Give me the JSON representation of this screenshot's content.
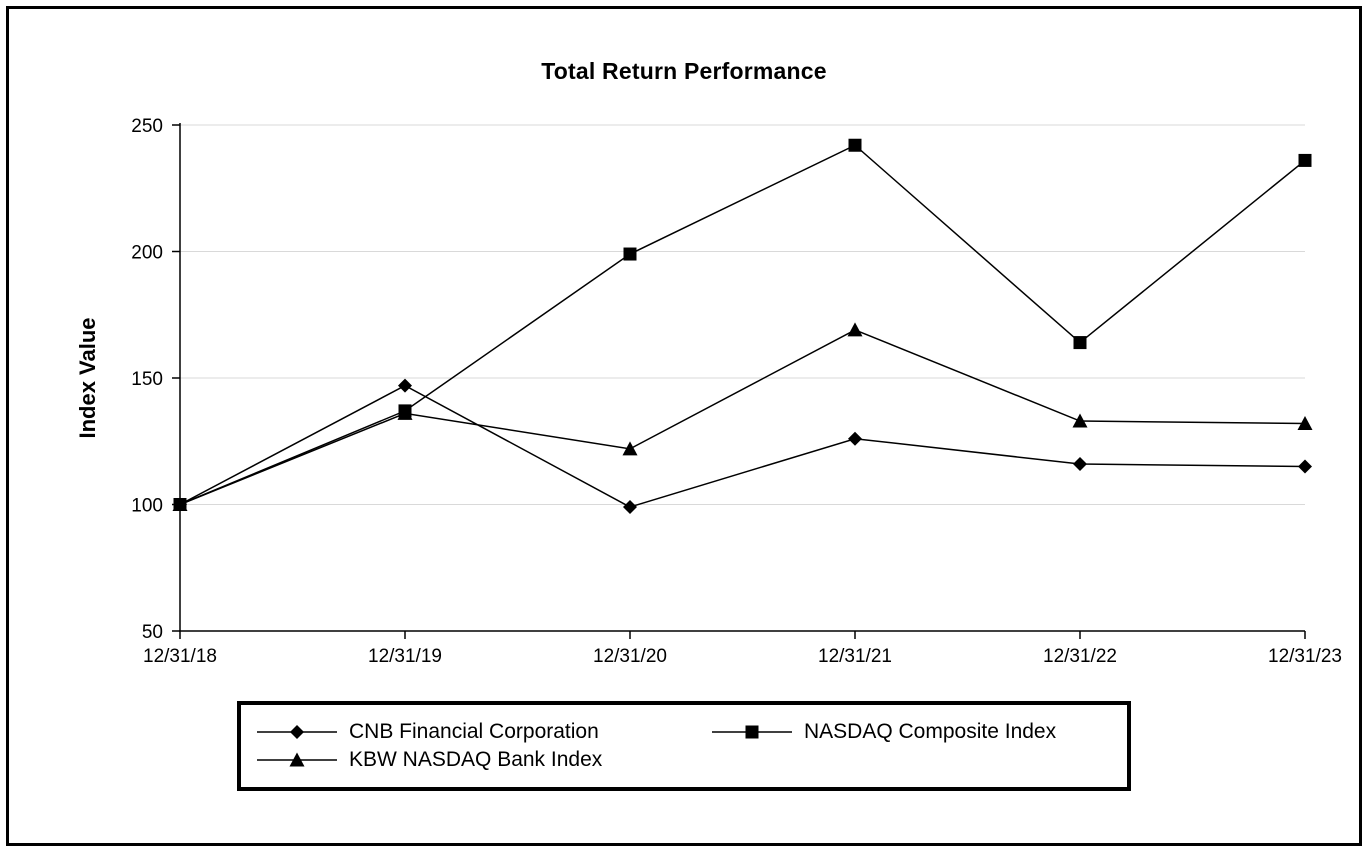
{
  "chart_data": {
    "type": "line",
    "title": "Total Return Performance",
    "xlabel": "",
    "ylabel": "Index Value",
    "categories": [
      "12/31/18",
      "12/31/19",
      "12/31/20",
      "12/31/21",
      "12/31/22",
      "12/31/23"
    ],
    "series": [
      {
        "name": "CNB Financial Corporation",
        "marker": "diamond",
        "values": [
          100,
          147,
          99,
          126,
          116,
          115
        ]
      },
      {
        "name": "NASDAQ Composite Index",
        "marker": "square",
        "values": [
          100,
          137,
          199,
          242,
          164,
          236
        ]
      },
      {
        "name": "KBW NASDAQ Bank Index",
        "marker": "triangle",
        "values": [
          100,
          136,
          122,
          169,
          133,
          132
        ]
      }
    ],
    "ylim": [
      50,
      250
    ],
    "yticks": [
      50,
      100,
      150,
      200,
      250
    ],
    "grid": true,
    "legend_position": "bottom",
    "colors": {
      "line": "#000000",
      "grid": "#d9d9d9",
      "text": "#000000",
      "background": "#ffffff"
    }
  }
}
